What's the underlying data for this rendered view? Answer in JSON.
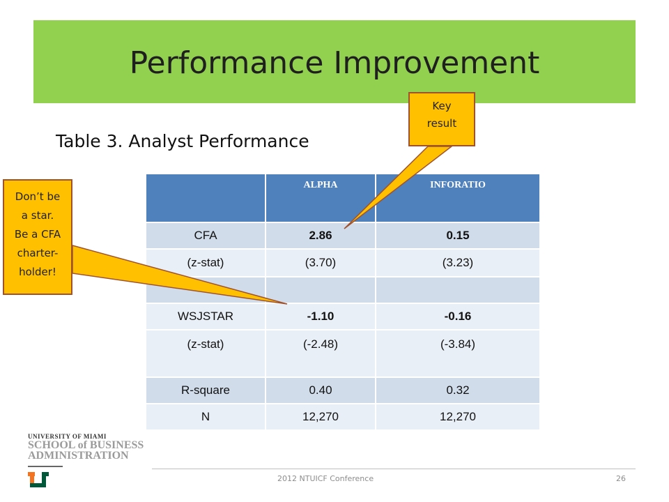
{
  "title": "Performance Improvement",
  "subtitle": "Table 3. Analyst  Performance",
  "table": {
    "headers": [
      "",
      "ALPHA",
      "INFORATIO"
    ],
    "rows": [
      {
        "label": "CFA",
        "alpha": "2.86",
        "inforatio": "0.15"
      },
      {
        "label": "(z-stat)",
        "alpha": "(3.70)",
        "inforatio": "(3.23)"
      },
      {
        "label": "",
        "alpha": "",
        "inforatio": ""
      },
      {
        "label": "WSJSTAR",
        "alpha": "-1.10",
        "inforatio": "-0.16"
      },
      {
        "label": "(z-stat)",
        "alpha": "(-2.48)",
        "inforatio": "(-3.84)"
      },
      {
        "label": "R-square",
        "alpha": "0.40",
        "inforatio": "0.32"
      },
      {
        "label": "N",
        "alpha": "12,270",
        "inforatio": "12,270"
      }
    ]
  },
  "callouts": {
    "key_result": [
      "Key",
      "result"
    ],
    "star": [
      "Don’t be",
      "a star.",
      "Be a CFA",
      "charter-",
      "holder!"
    ]
  },
  "logo": {
    "line1": "UNIVERSITY OF MIAMI",
    "line2": "SCHOOL of BUSINESS",
    "line3": "ADMINISTRATION"
  },
  "footer": {
    "conference": "2012 NTUICF Conference",
    "page": "26"
  },
  "colors": {
    "title_bar": "#92d050",
    "table_header": "#4f81bd",
    "row_dark": "#d0dcea",
    "row_light": "#e9eff6",
    "highlight_red": "#e61e1e",
    "callout_fill": "#ffc000",
    "callout_border": "#a0522d"
  }
}
